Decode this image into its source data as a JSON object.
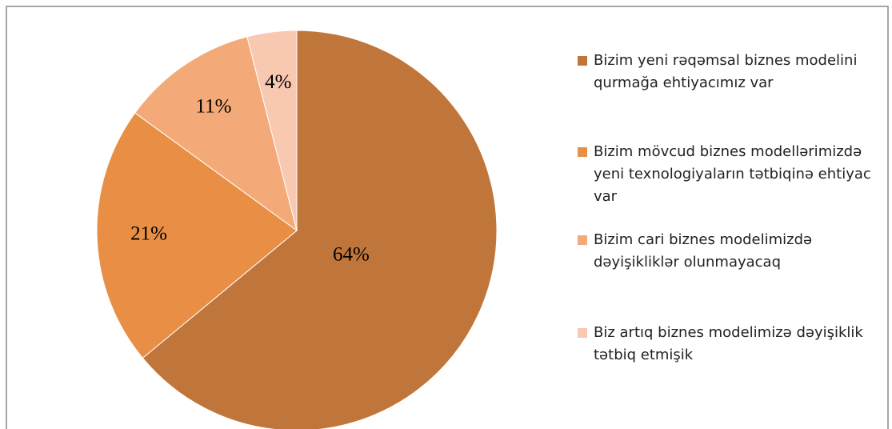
{
  "chart_data": {
    "type": "pie",
    "categories": [
      "Bizim yeni rəqəmsal biznes modelini qurmağa ehtiyacımız var",
      "Bizim mövcud biznes modellərimizdə yeni texnologiyaların tətbiqinə ehtiyac var",
      "Bizim cari biznes modelimizdə dəyişikliklər olunmayacaq",
      "Biz artıq biznes modelimizə dəyişiklik tətbiq etmişik"
    ],
    "values": [
      64,
      21,
      11,
      4
    ],
    "value_labels": [
      "64%",
      "21%",
      "11%",
      "4%"
    ],
    "colors": [
      "#c0763a",
      "#e88f45",
      "#f4aa78",
      "#f8c8b0"
    ],
    "legend": "right"
  }
}
